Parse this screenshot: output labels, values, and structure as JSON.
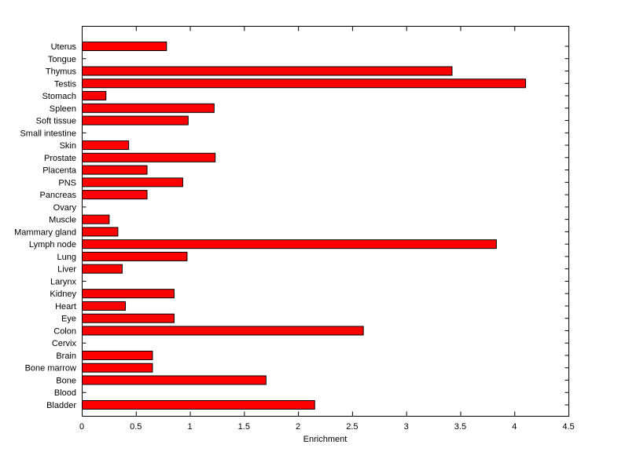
{
  "chart_data": {
    "type": "bar",
    "orientation": "horizontal",
    "title": "",
    "xlabel": "Enrichment",
    "ylabel": "",
    "xlim": [
      0,
      4.5
    ],
    "xticks": [
      0,
      0.5,
      1,
      1.5,
      2,
      2.5,
      3,
      3.5,
      4,
      4.5
    ],
    "xtick_labels": [
      "0",
      "0.5",
      "1",
      "1.5",
      "2",
      "2.5",
      "3",
      "3.5",
      "4",
      "4.5"
    ],
    "grid": false,
    "legend": false,
    "bar_color": "#ff0000",
    "bar_edge_color": "#000000",
    "background_color": "#ffffff",
    "categories": [
      "Uterus",
      "Tongue",
      "Thymus",
      "Testis",
      "Stomach",
      "Spleen",
      "Soft tissue",
      "Small intestine",
      "Skin",
      "Prostate",
      "Placenta",
      "PNS",
      "Pancreas",
      "Ovary",
      "Muscle",
      "Mammary gland",
      "Lymph node",
      "Lung",
      "Liver",
      "Larynx",
      "Kidney",
      "Heart",
      "Eye",
      "Colon",
      "Cervix",
      "Brain",
      "Bone marrow",
      "Bone",
      "Blood",
      "Bladder"
    ],
    "values": [
      0.78,
      0,
      3.42,
      4.1,
      0.22,
      1.22,
      0.98,
      0,
      0.43,
      1.23,
      0.6,
      0.93,
      0.6,
      0,
      0.25,
      0.33,
      3.83,
      0.97,
      0.37,
      0,
      0.85,
      0.4,
      0.85,
      2.6,
      0,
      0.65,
      0.65,
      1.7,
      0,
      2.15
    ]
  }
}
